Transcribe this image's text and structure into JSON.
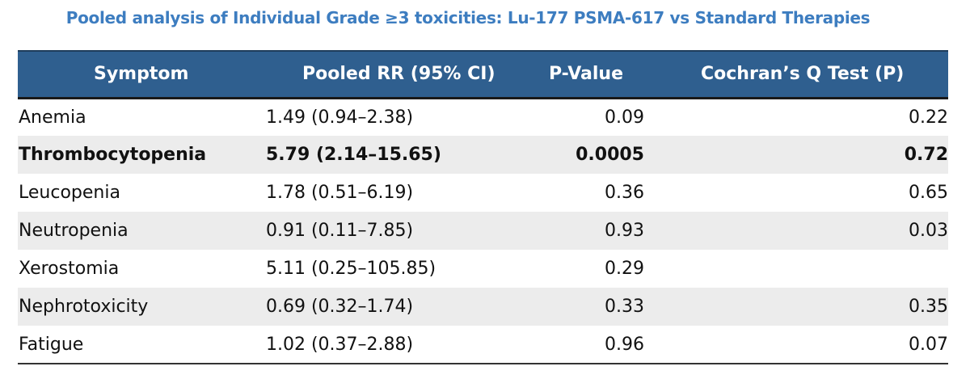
{
  "title": "Pooled analysis of Individual Grade ≥3 toxicities: Lu-177 PSMA-617 vs Standard Therapies",
  "table": {
    "headers": {
      "symptom": "Symptom",
      "pooled_rr": "Pooled RR (95% CI)",
      "p_value": "P-Value",
      "cochran": "Cochran’s Q Test (P)"
    },
    "rows": [
      {
        "symptom": "Anemia",
        "pooled_rr": "1.49 (0.94–2.38)",
        "p_value": "0.09",
        "cochran": "0.22",
        "bold": false
      },
      {
        "symptom": "Thrombocytopenia",
        "pooled_rr": "5.79 (2.14–15.65)",
        "p_value": "0.0005",
        "cochran": "0.72",
        "bold": true
      },
      {
        "symptom": "Leucopenia",
        "pooled_rr": "1.78 (0.51–6.19)",
        "p_value": "0.36",
        "cochran": "0.65",
        "bold": false
      },
      {
        "symptom": "Neutropenia",
        "pooled_rr": "0.91 (0.11–7.85)",
        "p_value": "0.93",
        "cochran": "0.03",
        "bold": false
      },
      {
        "symptom": "Xerostomia",
        "pooled_rr": "5.11 (0.25–105.85)",
        "p_value": "0.29",
        "cochran": "",
        "bold": false
      },
      {
        "symptom": "Nephrotoxicity",
        "pooled_rr": "0.69 (0.32–1.74)",
        "p_value": "0.33",
        "cochran": "0.35",
        "bold": false
      },
      {
        "symptom": "Fatigue",
        "pooled_rr": "1.02 (0.37–2.88)",
        "p_value": "0.96",
        "cochran": "0.07",
        "bold": false
      }
    ]
  },
  "colors": {
    "title": "#3d7dc0",
    "header_background": "#2f5f8f",
    "header_text": "#ffffff",
    "stripe": "#ececec"
  }
}
